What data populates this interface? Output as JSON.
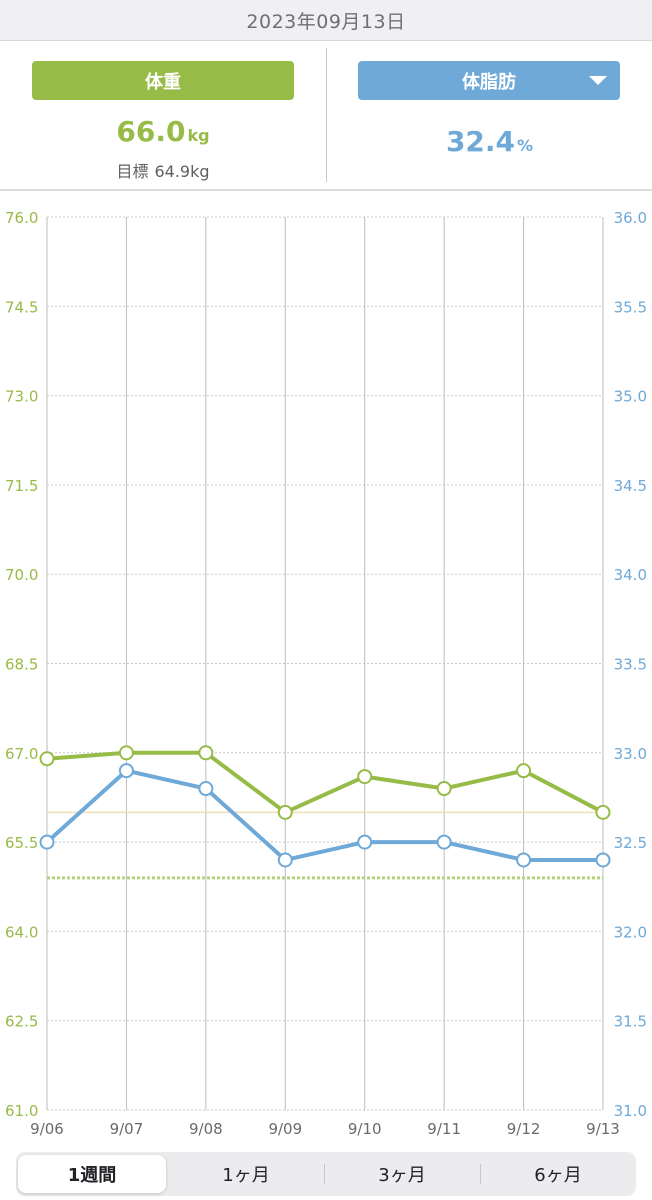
{
  "header": {
    "date": "2023年09月13日"
  },
  "weight_panel": {
    "label": "体重",
    "value": "66.0",
    "unit": "kg",
    "goal_label": "目標",
    "goal_value": "64.9kg"
  },
  "fat_panel": {
    "label": "体脂肪",
    "value": "32.4",
    "unit": "%"
  },
  "range_selector": {
    "options": [
      "1週間",
      "1ヶ月",
      "3ヶ月",
      "6ヶ月"
    ],
    "selected": "1週間"
  },
  "chart_data": {
    "type": "line",
    "x": [
      "9/06",
      "9/07",
      "9/08",
      "9/09",
      "9/10",
      "9/11",
      "9/12",
      "9/13"
    ],
    "series": [
      {
        "name": "体重",
        "axis": "left",
        "color": "#97bb47",
        "values": [
          66.9,
          67.0,
          67.0,
          66.0,
          66.6,
          66.4,
          66.7,
          66.0
        ]
      },
      {
        "name": "体脂肪",
        "axis": "right",
        "color": "#6fa9d8",
        "values": [
          32.5,
          32.9,
          32.8,
          32.4,
          32.5,
          32.5,
          32.4,
          32.4
        ]
      }
    ],
    "y_left": {
      "range": [
        61.0,
        76.0
      ],
      "ticks": [
        "61.0",
        "62.5",
        "64.0",
        "65.5",
        "67.0",
        "68.5",
        "70.0",
        "71.5",
        "73.0",
        "74.5",
        "76.0"
      ],
      "color": "#97bb47"
    },
    "y_right": {
      "range": [
        31.0,
        36.0
      ],
      "ticks": [
        "31.0",
        "31.5",
        "32.0",
        "32.5",
        "33.0",
        "33.5",
        "34.0",
        "34.5",
        "35.0",
        "35.5",
        "36.0"
      ],
      "color": "#6fa9d8"
    },
    "reference_lines": [
      {
        "axis": "left",
        "value": 66.0,
        "style": "solid",
        "color": "#eedfb4"
      },
      {
        "axis": "left",
        "value": 64.9,
        "style": "dotted",
        "color": "#b4d27a"
      }
    ],
    "grid": true,
    "title": "",
    "xlabel": "",
    "ylabel": ""
  }
}
